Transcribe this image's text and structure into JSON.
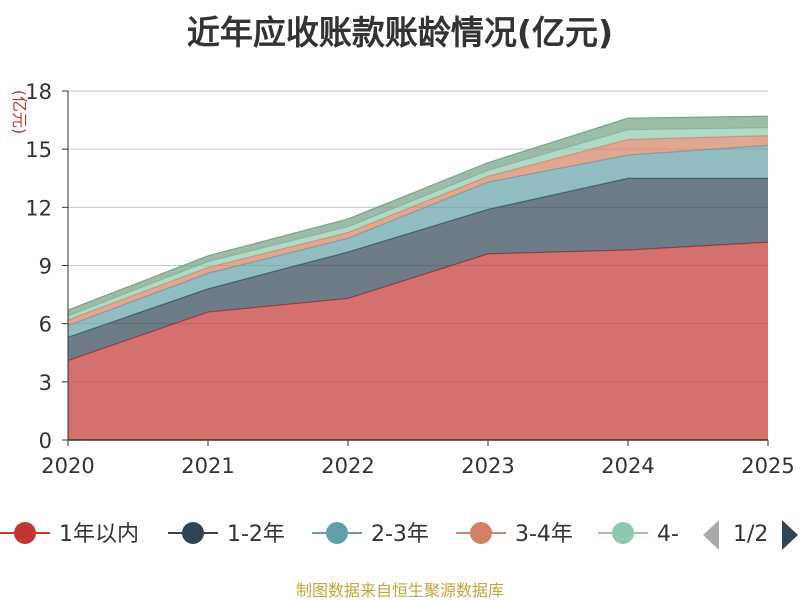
{
  "chart_data": {
    "type": "area",
    "stacked": true,
    "title": "近年应收账款账龄情况(亿元)",
    "ylabel": "(亿元)",
    "xlabel": "",
    "categories": [
      "2020",
      "2021",
      "2022",
      "2023",
      "2024",
      "2025"
    ],
    "ylim": [
      0,
      18
    ],
    "yticks": [
      "0",
      "3",
      "6",
      "9",
      "12",
      "15",
      "18"
    ],
    "grid": true,
    "series": [
      {
        "name": "1年以内",
        "values": [
          4.1,
          6.6,
          7.3,
          9.6,
          9.8,
          10.2
        ],
        "color": "#c23531"
      },
      {
        "name": "1-2年",
        "values": [
          1.2,
          1.2,
          2.4,
          2.3,
          3.7,
          3.3
        ],
        "color": "#2f4554"
      },
      {
        "name": "2-3年",
        "values": [
          0.6,
          0.8,
          0.7,
          1.4,
          1.2,
          1.7
        ],
        "color": "#61a0a8"
      },
      {
        "name": "3-4年",
        "values": [
          0.3,
          0.3,
          0.3,
          0.3,
          0.8,
          0.5
        ],
        "color": "#d48265"
      },
      {
        "name": "4-",
        "values": [
          0.2,
          0.3,
          0.3,
          0.3,
          0.5,
          0.4
        ],
        "color": "#91c7ae"
      },
      {
        "name": "",
        "values": [
          0.3,
          0.3,
          0.4,
          0.4,
          0.6,
          0.6
        ],
        "color": "#749f83"
      }
    ],
    "legend": {
      "placement": "bottom",
      "page": "1/2"
    }
  },
  "footer": "制图数据来自恒生聚源数据库"
}
